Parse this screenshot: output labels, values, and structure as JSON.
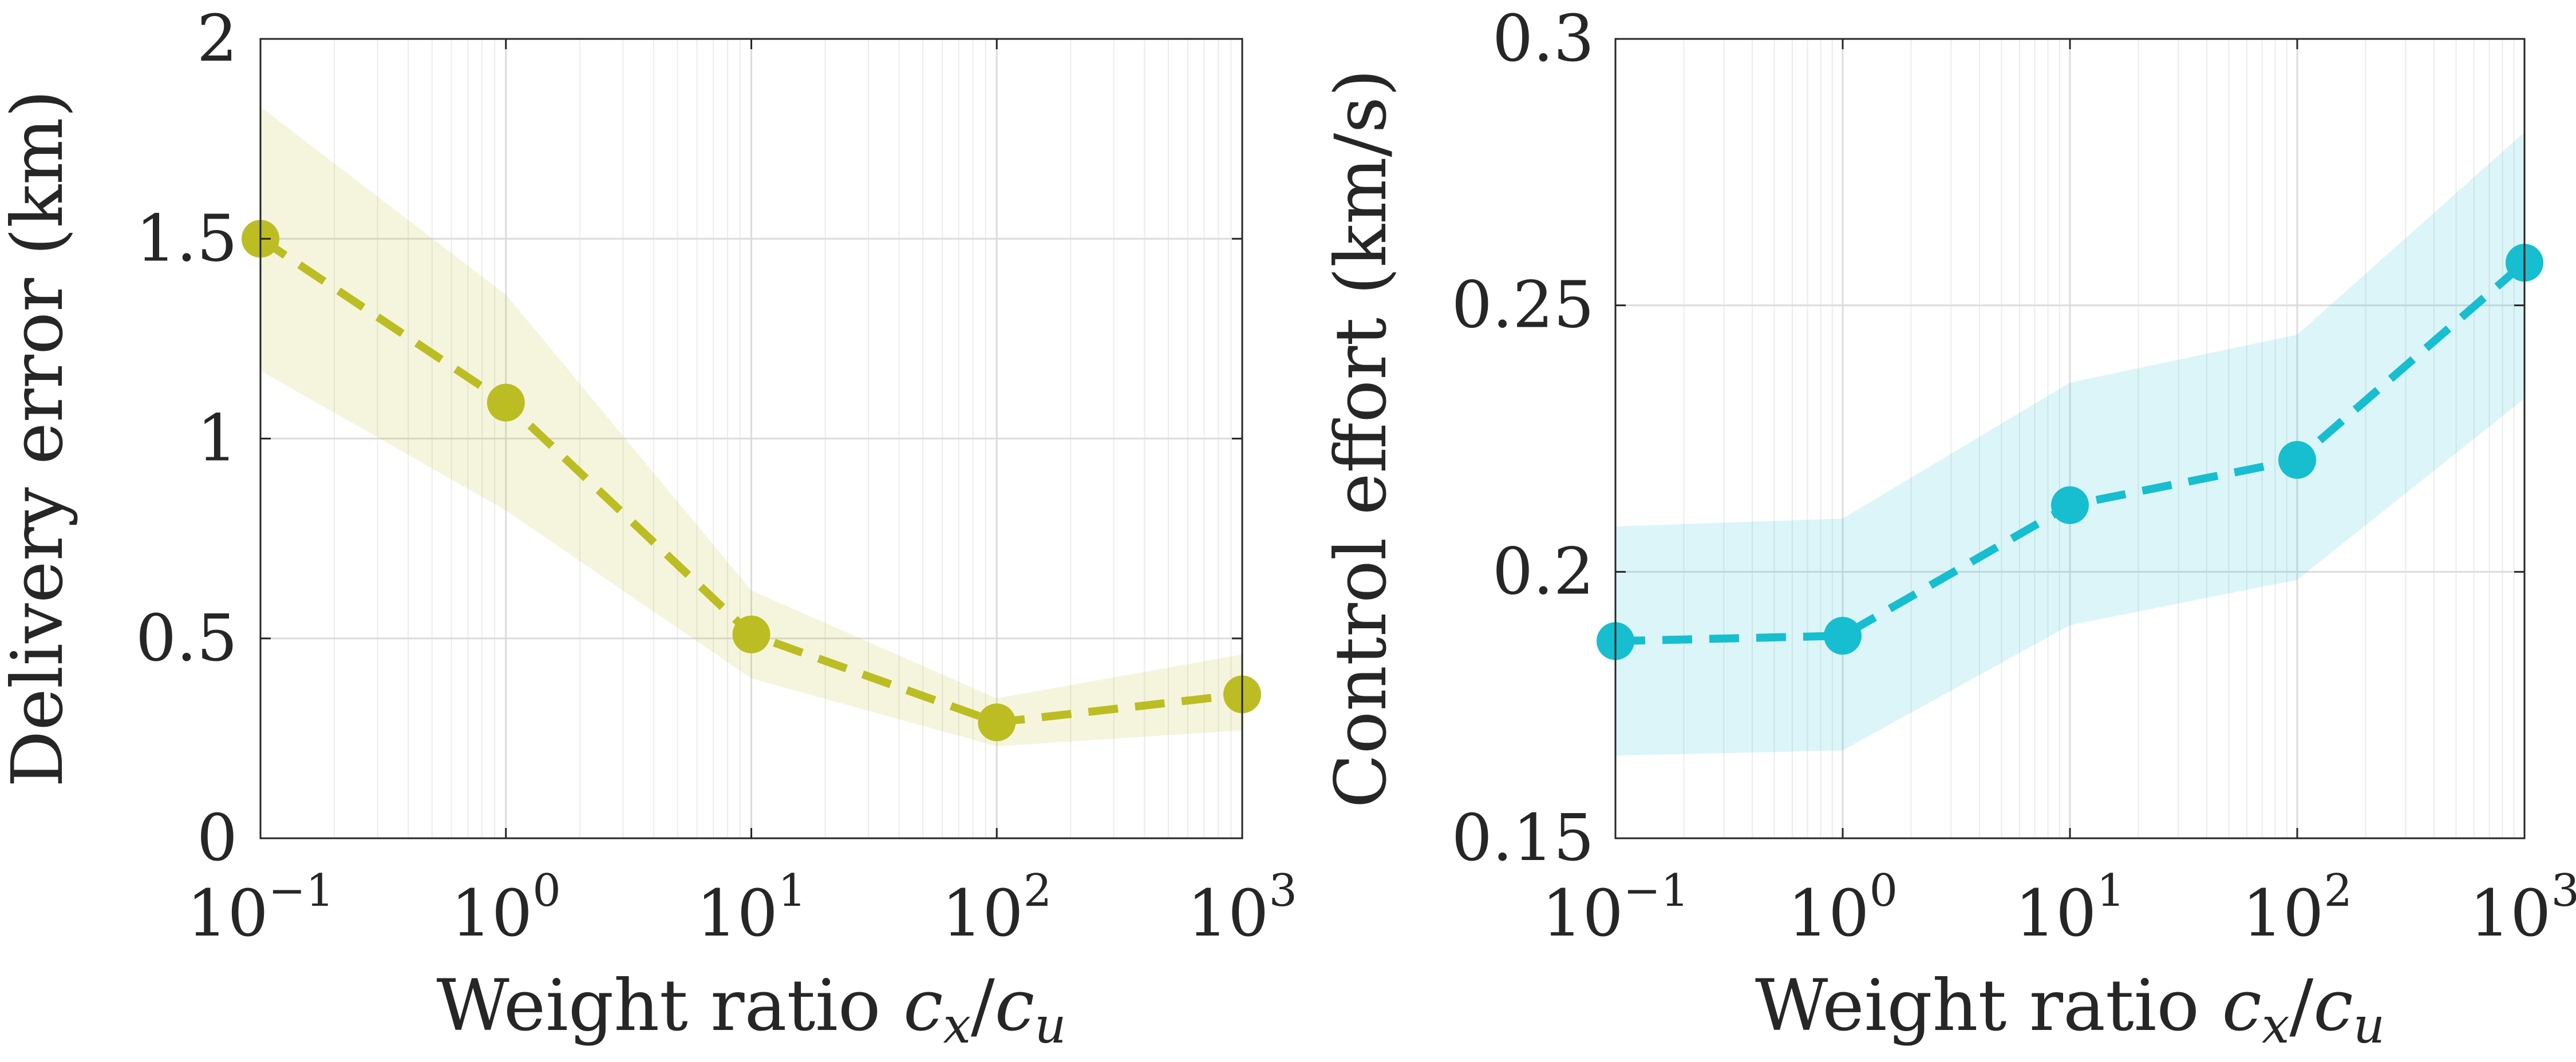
{
  "chart_data": [
    {
      "type": "line",
      "xlabel": "Weight ratio c_x/c_u",
      "xlabel_parts": {
        "text": "Weight ratio ",
        "var1": "c",
        "sub1": "x",
        "slash": "/",
        "var2": "c",
        "sub2": "u"
      },
      "ylabel": "Delivery error (km)",
      "x_scale": "log",
      "xlim": [
        0.1,
        1000
      ],
      "ylim": [
        0,
        2
      ],
      "x_ticks": [
        {
          "base": "10",
          "exp": "−1",
          "value": 0.1
        },
        {
          "base": "10",
          "exp": "0",
          "value": 1
        },
        {
          "base": "10",
          "exp": "1",
          "value": 10
        },
        {
          "base": "10",
          "exp": "2",
          "value": 100
        },
        {
          "base": "10",
          "exp": "3",
          "value": 1000
        }
      ],
      "y_ticks": [
        {
          "label": "0",
          "value": 0
        },
        {
          "label": "0.5",
          "value": 0.5
        },
        {
          "label": "1",
          "value": 1
        },
        {
          "label": "1.5",
          "value": 1.5
        },
        {
          "label": "2",
          "value": 2
        }
      ],
      "grid": true,
      "color": "#bcbd22",
      "x": [
        0.1,
        1,
        10,
        100,
        1000
      ],
      "y": [
        1.5,
        1.09,
        0.51,
        0.29,
        0.36
      ],
      "band_upper": [
        1.83,
        1.36,
        0.62,
        0.35,
        0.46
      ],
      "band_lower": [
        1.17,
        0.82,
        0.4,
        0.23,
        0.27
      ]
    },
    {
      "type": "line",
      "xlabel": "Weight ratio c_x/c_u",
      "xlabel_parts": {
        "text": "Weight ratio ",
        "var1": "c",
        "sub1": "x",
        "slash": "/",
        "var2": "c",
        "sub2": "u"
      },
      "ylabel": "Control effort (km/s)",
      "x_scale": "log",
      "xlim": [
        0.1,
        1000
      ],
      "ylim": [
        0.15,
        0.3
      ],
      "x_ticks": [
        {
          "base": "10",
          "exp": "−1",
          "value": 0.1
        },
        {
          "base": "10",
          "exp": "0",
          "value": 1
        },
        {
          "base": "10",
          "exp": "1",
          "value": 10
        },
        {
          "base": "10",
          "exp": "2",
          "value": 100
        },
        {
          "base": "10",
          "exp": "3",
          "value": 1000
        }
      ],
      "y_ticks": [
        {
          "label": "0.15",
          "value": 0.15
        },
        {
          "label": "0.2",
          "value": 0.2
        },
        {
          "label": "0.25",
          "value": 0.25
        },
        {
          "label": "0.3",
          "value": 0.3
        }
      ],
      "grid": true,
      "color": "#17becf",
      "x": [
        0.1,
        1,
        10,
        100,
        1000
      ],
      "y": [
        0.187,
        0.188,
        0.2125,
        0.221,
        0.258
      ],
      "band_upper": [
        0.2085,
        0.21,
        0.2355,
        0.2445,
        0.2825
      ],
      "band_lower": [
        0.1655,
        0.1665,
        0.19,
        0.1985,
        0.2325
      ]
    }
  ]
}
